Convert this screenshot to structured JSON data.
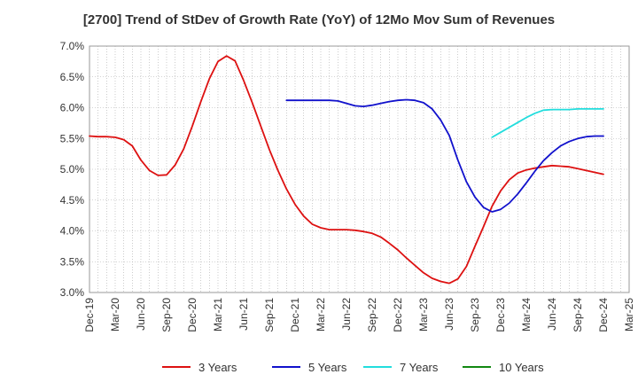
{
  "chart_data": {
    "type": "line",
    "title": "[2700]  Trend of StDev of Growth Rate (YoY) of 12Mo Mov Sum of Revenues",
    "xlabel": "",
    "ylabel": "",
    "ylim": [
      3.0,
      7.0
    ],
    "y_ticks": [
      "3.0%",
      "3.5%",
      "4.0%",
      "4.5%",
      "5.0%",
      "5.5%",
      "6.0%",
      "6.5%",
      "7.0%"
    ],
    "x_ticks": [
      "Dec-19",
      "Mar-20",
      "Jun-20",
      "Sep-20",
      "Dec-20",
      "Mar-21",
      "Jun-21",
      "Sep-21",
      "Dec-21",
      "Mar-22",
      "Jun-22",
      "Sep-22",
      "Dec-22",
      "Mar-23",
      "Jun-23",
      "Sep-23",
      "Dec-23",
      "Mar-24",
      "Jun-24",
      "Sep-24",
      "Dec-24",
      "Mar-25"
    ],
    "x_range_months": [
      0,
      63
    ],
    "grid": true,
    "legend_position": "bottom",
    "series": [
      {
        "name": "3 Years",
        "color": "#dd1111",
        "x": [
          0,
          1,
          2,
          3,
          4,
          5,
          6,
          7,
          8,
          9,
          10,
          11,
          12,
          13,
          14,
          15,
          16,
          17,
          18,
          19,
          20,
          21,
          22,
          23,
          24,
          25,
          26,
          27,
          28,
          29,
          30,
          31,
          32,
          33,
          34,
          35,
          36,
          37,
          38,
          39,
          40,
          41,
          42,
          43,
          44,
          45,
          46,
          47,
          48,
          49,
          50,
          51,
          52,
          53,
          54,
          55,
          56,
          57,
          58,
          59,
          60
        ],
        "values": [
          5.54,
          5.53,
          5.53,
          5.52,
          5.48,
          5.38,
          5.15,
          4.98,
          4.9,
          4.91,
          5.07,
          5.33,
          5.7,
          6.1,
          6.47,
          6.75,
          6.84,
          6.76,
          6.44,
          6.08,
          5.7,
          5.32,
          4.98,
          4.68,
          4.43,
          4.24,
          4.11,
          4.05,
          4.02,
          4.02,
          4.02,
          4.01,
          3.99,
          3.96,
          3.9,
          3.8,
          3.69,
          3.56,
          3.44,
          3.32,
          3.23,
          3.18,
          3.15,
          3.22,
          3.42,
          3.75,
          4.07,
          4.4,
          4.65,
          4.83,
          4.94,
          4.99,
          5.02,
          5.04,
          5.06,
          5.05,
          5.04,
          5.01,
          4.98,
          4.95,
          4.92
        ]
      },
      {
        "name": "5 Years",
        "color": "#1111cc",
        "x": [
          23,
          24,
          25,
          26,
          27,
          28,
          29,
          30,
          31,
          32,
          33,
          34,
          35,
          36,
          37,
          38,
          39,
          40,
          41,
          42,
          43,
          44,
          45,
          46,
          47,
          48,
          49,
          50,
          51,
          52,
          53,
          54,
          55,
          56,
          57,
          58,
          59,
          60
        ],
        "values": [
          6.12,
          6.12,
          6.12,
          6.12,
          6.12,
          6.12,
          6.11,
          6.07,
          6.03,
          6.02,
          6.04,
          6.07,
          6.1,
          6.12,
          6.13,
          6.12,
          6.08,
          5.98,
          5.8,
          5.55,
          5.15,
          4.8,
          4.55,
          4.38,
          4.31,
          4.35,
          4.45,
          4.6,
          4.78,
          4.97,
          5.14,
          5.27,
          5.38,
          5.45,
          5.5,
          5.53,
          5.54,
          5.54
        ]
      },
      {
        "name": "7 Years",
        "color": "#22dddd",
        "x": [
          47,
          48,
          49,
          50,
          51,
          52,
          53,
          54,
          55,
          56,
          57,
          58,
          59,
          60
        ],
        "values": [
          5.52,
          5.6,
          5.68,
          5.76,
          5.84,
          5.91,
          5.96,
          5.97,
          5.97,
          5.97,
          5.98,
          5.98,
          5.98,
          5.98
        ]
      },
      {
        "name": "10 Years",
        "color": "#118811",
        "x": [],
        "values": []
      }
    ]
  }
}
